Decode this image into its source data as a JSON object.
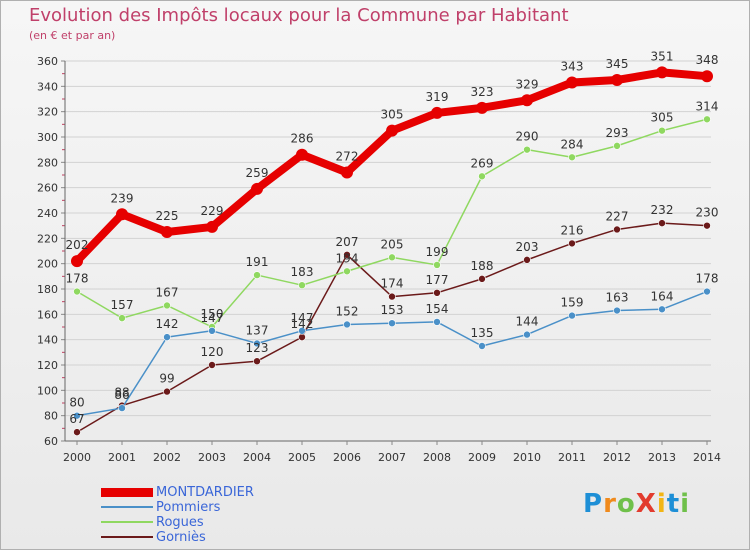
{
  "title": "Evolution des Impôts locaux pour la Commune par Habitant",
  "subtitle": "(en € et par an)",
  "logo": {
    "letters": [
      {
        "ch": "P",
        "color": "#1e8fd6"
      },
      {
        "ch": "r",
        "color": "#f08a1c"
      },
      {
        "ch": "o",
        "color": "#6fc04a"
      },
      {
        "ch": "X",
        "color": "#e23b2e"
      },
      {
        "ch": "i",
        "color": "#f2b514"
      },
      {
        "ch": "t",
        "color": "#1e8fd6"
      },
      {
        "ch": "i",
        "color": "#6fc04a"
      }
    ]
  },
  "chart_data": {
    "type": "line",
    "title": "Evolution des Impôts locaux pour la Commune par Habitant",
    "subtitle": "(en € et par an)",
    "xlabel": "",
    "ylabel": "",
    "x": [
      "2000",
      "2001",
      "2002",
      "2003",
      "2004",
      "2005",
      "2006",
      "2007",
      "2008",
      "2009",
      "2010",
      "2011",
      "2012",
      "2013",
      "2014"
    ],
    "ylim": [
      60,
      360
    ],
    "yticks": [
      60,
      80,
      100,
      120,
      140,
      160,
      180,
      200,
      220,
      240,
      260,
      280,
      300,
      320,
      340,
      360
    ],
    "grid": "horizontal",
    "legend_position": "bottom-left",
    "series": [
      {
        "name": "MONTDARDIER",
        "color": "#e60000",
        "values": [
          202,
          239,
          225,
          229,
          259,
          286,
          272,
          305,
          319,
          323,
          329,
          343,
          345,
          351,
          348
        ]
      },
      {
        "name": "Pommiers",
        "color": "#4a90c8",
        "values": [
          80,
          86,
          142,
          147,
          137,
          147,
          152,
          153,
          154,
          135,
          144,
          159,
          163,
          164,
          178
        ]
      },
      {
        "name": "Rogues",
        "color": "#8fd860",
        "values": [
          178,
          157,
          167,
          150,
          191,
          183,
          194,
          205,
          199,
          269,
          290,
          284,
          293,
          305,
          314
        ]
      },
      {
        "name": "Gorniès",
        "color": "#6b1a1a",
        "values": [
          67,
          88,
          99,
          120,
          123,
          142,
          207,
          174,
          177,
          188,
          203,
          216,
          227,
          232,
          230
        ]
      }
    ],
    "labels": [
      [
        "202",
        "239",
        "225",
        "229",
        "259",
        "286",
        "272",
        "305",
        "319",
        "323",
        "329",
        "343",
        "345",
        "351",
        "348"
      ],
      [
        "80",
        "86",
        "142",
        "147",
        "137",
        "147",
        "152",
        "153",
        "154",
        "135",
        "144",
        "159",
        "163",
        "164",
        "178"
      ],
      [
        "178",
        "157",
        "167",
        "150",
        "191",
        "183",
        "194",
        "205",
        "199",
        "269",
        "290",
        "284",
        "293",
        "305",
        "314"
      ],
      [
        "67",
        "88",
        "99",
        "120",
        "123",
        "142",
        "207",
        "174",
        "177",
        "188",
        "203",
        "216",
        "227",
        "232",
        "230"
      ]
    ]
  }
}
